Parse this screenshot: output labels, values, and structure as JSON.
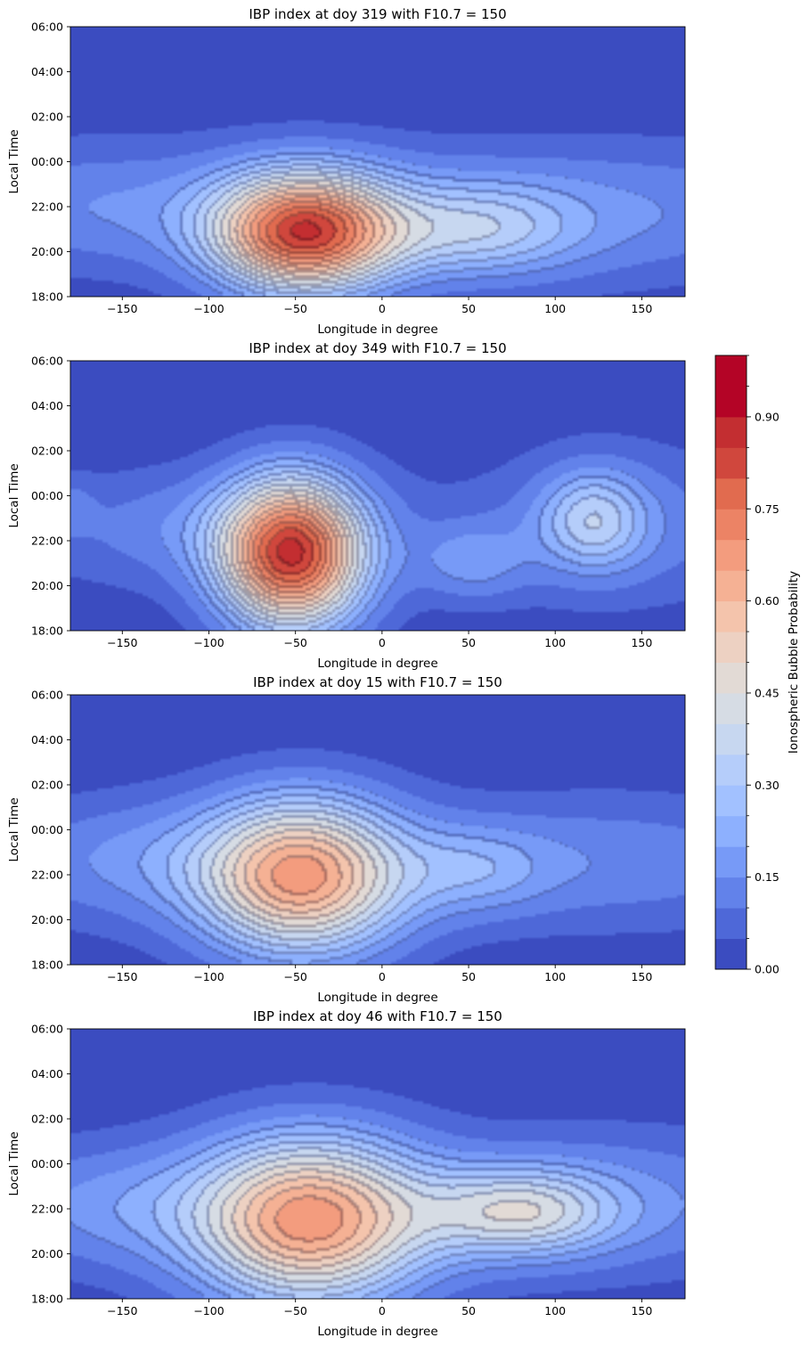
{
  "chart_data": [
    {
      "type": "heatmap",
      "title": "IBP index at doy 319 with F10.7 = 150",
      "xlabel": "Longitude in degree",
      "ylabel": "Local Time",
      "xlim": [
        -180,
        175
      ],
      "xticks": [
        -150,
        -100,
        -50,
        0,
        50,
        100,
        150
      ],
      "yticks": [
        "18:00",
        "20:00",
        "22:00",
        "00:00",
        "02:00",
        "04:00",
        "06:00"
      ],
      "ylim_hours": [
        18,
        30
      ],
      "background": 0.08,
      "peak": {
        "longitude": -47,
        "local_time": "20:45",
        "value": 0.85
      },
      "blobs": [
        {
          "lon": -45,
          "lt": 20.8,
          "amp": 0.78,
          "slon": 38,
          "slt": 1.9
        },
        {
          "lon": 55,
          "lt": 20.9,
          "amp": 0.22,
          "slon": 40,
          "slt": 1.5
        },
        {
          "lon": 120,
          "lt": 21.2,
          "amp": 0.08,
          "slon": 80,
          "slt": 2.2
        },
        {
          "lon": -160,
          "lt": 21.7,
          "amp": 0.07,
          "slon": 45,
          "slt": 2.0
        }
      ]
    },
    {
      "type": "heatmap",
      "title": "IBP index at doy 349 with F10.7 = 150",
      "xlabel": "Longitude in degree",
      "ylabel": "Local Time",
      "xlim": [
        -180,
        175
      ],
      "xticks": [
        -150,
        -100,
        -50,
        0,
        50,
        100,
        150
      ],
      "yticks": [
        "18:00",
        "20:00",
        "22:00",
        "00:00",
        "02:00",
        "04:00",
        "06:00"
      ],
      "ylim_hours": [
        18,
        30
      ],
      "background": 0.05,
      "peak": {
        "longitude": -53,
        "local_time": "21:30",
        "value": 0.87
      },
      "blobs": [
        {
          "lon": -52,
          "lt": 21.4,
          "amp": 0.82,
          "slon": 30,
          "slt": 2.4
        },
        {
          "lon": 52,
          "lt": 21.0,
          "amp": 0.13,
          "slon": 22,
          "slt": 1.2
        },
        {
          "lon": 122,
          "lt": 22.9,
          "amp": 0.24,
          "slon": 22,
          "slt": 1.6
        },
        {
          "lon": 140,
          "lt": 23.0,
          "amp": 0.07,
          "slon": 60,
          "slt": 3.0
        },
        {
          "lon": -130,
          "lt": 22.7,
          "amp": 0.07,
          "slon": 40,
          "slt": 1.8
        },
        {
          "lon": -180,
          "lt": 23.6,
          "amp": 0.06,
          "slon": 10,
          "slt": 0.9
        }
      ]
    },
    {
      "type": "heatmap",
      "title": "IBP index at doy 15 with F10.7 = 150",
      "xlabel": "Longitude in degree",
      "ylabel": "Local Time",
      "xlim": [
        -180,
        175
      ],
      "xticks": [
        -150,
        -100,
        -50,
        0,
        50,
        100,
        150
      ],
      "yticks": [
        "18:00",
        "20:00",
        "22:00",
        "00:00",
        "02:00",
        "04:00",
        "06:00"
      ],
      "ylim_hours": [
        18,
        30
      ],
      "background": 0.06,
      "peak": {
        "longitude": -47,
        "local_time": "21:55",
        "value": 0.68
      },
      "blobs": [
        {
          "lon": -47,
          "lt": 21.9,
          "amp": 0.62,
          "slon": 42,
          "slt": 2.5
        },
        {
          "lon": 55,
          "lt": 22.2,
          "amp": 0.13,
          "slon": 30,
          "slt": 1.4
        },
        {
          "lon": 130,
          "lt": 22.8,
          "amp": 0.08,
          "slon": 70,
          "slt": 2.2
        },
        {
          "lon": -150,
          "lt": 22.8,
          "amp": 0.09,
          "slon": 45,
          "slt": 2.0
        }
      ]
    },
    {
      "type": "heatmap",
      "title": "IBP index at doy 46 with F10.7 = 150",
      "xlabel": "Longitude in degree",
      "ylabel": "Local Time",
      "xlim": [
        -180,
        175
      ],
      "xticks": [
        -150,
        -100,
        -50,
        0,
        50,
        100,
        150
      ],
      "yticks": [
        "18:00",
        "20:00",
        "22:00",
        "00:00",
        "02:00",
        "04:00",
        "06:00"
      ],
      "ylim_hours": [
        18,
        30
      ],
      "background": 0.06,
      "peak": {
        "longitude": -42,
        "local_time": "21:25",
        "value": 0.7
      },
      "blobs": [
        {
          "lon": -42,
          "lt": 21.4,
          "amp": 0.63,
          "slon": 48,
          "slt": 2.7
        },
        {
          "lon": 80,
          "lt": 21.8,
          "amp": 0.32,
          "slon": 38,
          "slt": 1.4
        },
        {
          "lon": 135,
          "lt": 22.3,
          "amp": 0.09,
          "slon": 70,
          "slt": 2.5
        },
        {
          "lon": -160,
          "lt": 22.0,
          "amp": 0.1,
          "slon": 45,
          "slt": 2.0
        }
      ]
    }
  ],
  "colorbar": {
    "label": "Ionospheric Bubble Probability",
    "min": 0.0,
    "max": 1.0,
    "step": 0.05,
    "ticks": [
      "0.00",
      "0.15",
      "0.30",
      "0.45",
      "0.60",
      "0.75",
      "0.90"
    ],
    "colormap": "coolwarm",
    "colors": [
      "#3b4cc0",
      "#4e68d8",
      "#6282ea",
      "#779af7",
      "#8db0fe",
      "#a2c1ff",
      "#b5cdfa",
      "#c7d7f0",
      "#d6dce4",
      "#e2dad5",
      "#edd1c2",
      "#f4c4ac",
      "#f5b194",
      "#f39c7e",
      "#ec8365",
      "#e16b4f",
      "#d0473d",
      "#c32e31",
      "#b40426"
    ]
  }
}
